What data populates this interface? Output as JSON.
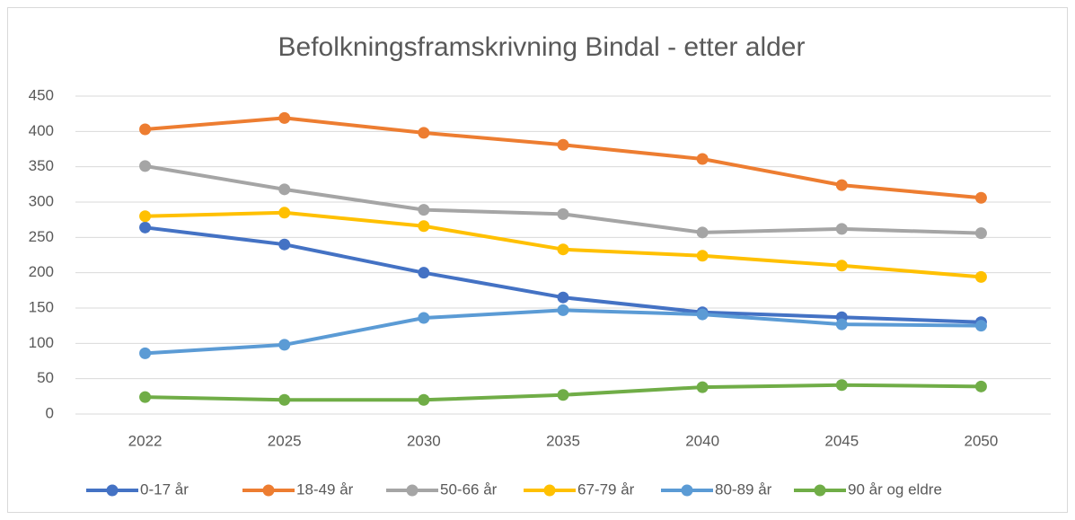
{
  "chart_data": {
    "type": "line",
    "title": "Befolkningsframskrivning Bindal - etter alder",
    "categories": [
      "2022",
      "2025",
      "2030",
      "2035",
      "2040",
      "2045",
      "2050"
    ],
    "series": [
      {
        "name": "0-17 år",
        "color": "#4472c4",
        "values": [
          264,
          240,
          200,
          165,
          144,
          137,
          130
        ]
      },
      {
        "name": "18-49 år",
        "color": "#ed7d31",
        "values": [
          403,
          419,
          398,
          381,
          361,
          324,
          306
        ]
      },
      {
        "name": "50-66 år",
        "color": "#a5a5a5",
        "values": [
          351,
          318,
          289,
          283,
          257,
          262,
          256
        ]
      },
      {
        "name": "67-79 år",
        "color": "#ffc000",
        "values": [
          280,
          285,
          266,
          233,
          224,
          210,
          194
        ]
      },
      {
        "name": "80-89 år",
        "color": "#5b9bd5",
        "values": [
          86,
          98,
          136,
          147,
          141,
          127,
          125
        ]
      },
      {
        "name": "90 år og eldre",
        "color": "#70ad47",
        "values": [
          24,
          20,
          20,
          27,
          38,
          41,
          39
        ]
      }
    ],
    "ylim": [
      0,
      450
    ],
    "yticks": [
      0,
      50,
      100,
      150,
      200,
      250,
      300,
      350,
      400,
      450
    ],
    "grid": true,
    "legend": "bottom"
  }
}
